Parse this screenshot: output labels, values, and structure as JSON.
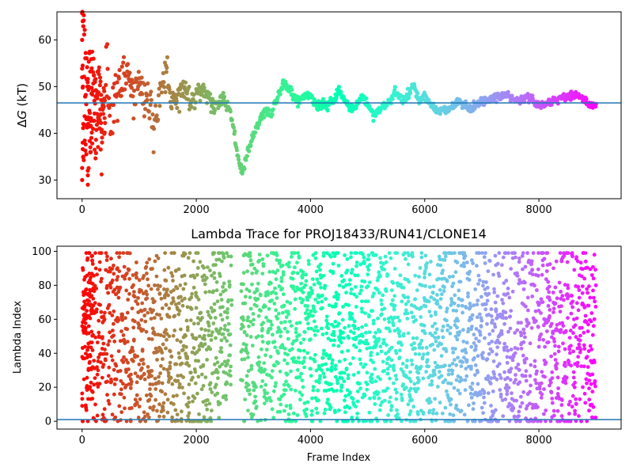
{
  "chart_data": [
    {
      "type": "scatter",
      "title": "",
      "xlabel": "",
      "ylabel": "ΔG (kT)",
      "xlim": [
        -440,
        9440
      ],
      "ylim": [
        26,
        66
      ],
      "xticks": [
        0,
        2000,
        4000,
        6000,
        8000
      ],
      "xtick_labels": [
        "0",
        "2000",
        "4000",
        "6000",
        "8000"
      ],
      "yticks": [
        30,
        40,
        50,
        60
      ],
      "ytick_labels": [
        "30",
        "40",
        "50",
        "60"
      ],
      "hline": 46.5,
      "hline_color": "#1f77b4",
      "colormap": "rainbow (red at frame 0 → violet at frame 9000)",
      "x_max": 9000,
      "series": [
        {
          "trace": [
            [
              0,
              45
            ],
            [
              20,
              50
            ],
            [
              40,
              46
            ],
            [
              60,
              44
            ],
            [
              80,
              49
            ],
            [
              100,
              46
            ],
            [
              150,
              48
            ],
            [
              200,
              50
            ],
            [
              250,
              45
            ],
            [
              300,
              47
            ],
            [
              350,
              43
            ],
            [
              400,
              46
            ],
            [
              450,
              49
            ],
            [
              500,
              46
            ],
            [
              600,
              48
            ],
            [
              700,
              50
            ],
            [
              800,
              53
            ],
            [
              850,
              49
            ],
            [
              900,
              48
            ],
            [
              1000,
              52
            ],
            [
              1100,
              47
            ],
            [
              1200,
              48
            ],
            [
              1250,
              40
            ],
            [
              1300,
              44
            ],
            [
              1350,
              47
            ],
            [
              1400,
              51
            ],
            [
              1500,
              54
            ],
            [
              1550,
              46
            ],
            [
              1600,
              47
            ],
            [
              1700,
              48
            ],
            [
              1800,
              50
            ],
            [
              1900,
              47
            ],
            [
              2000,
              48
            ],
            [
              2100,
              50
            ],
            [
              2200,
              48
            ],
            [
              2300,
              46
            ],
            [
              2400,
              47
            ],
            [
              2500,
              47
            ],
            [
              2600,
              45
            ],
            [
              2700,
              37
            ],
            [
              2780,
              32
            ],
            [
              2800,
              31
            ],
            [
              2900,
              36
            ],
            [
              3000,
              40
            ],
            [
              3100,
              42
            ],
            [
              3200,
              45
            ],
            [
              3300,
              44
            ],
            [
              3400,
              47
            ],
            [
              3500,
              50
            ],
            [
              3550,
              51
            ],
            [
              3600,
              50
            ],
            [
              3700,
              48
            ],
            [
              3800,
              47
            ],
            [
              3900,
              48
            ],
            [
              4000,
              48
            ],
            [
              4100,
              46
            ],
            [
              4200,
              46
            ],
            [
              4300,
              46
            ],
            [
              4400,
              47
            ],
            [
              4500,
              49
            ],
            [
              4600,
              47
            ],
            [
              4700,
              45
            ],
            [
              4800,
              46
            ],
            [
              4900,
              48
            ],
            [
              5000,
              46
            ],
            [
              5100,
              44
            ],
            [
              5200,
              45
            ],
            [
              5300,
              46
            ],
            [
              5400,
              47
            ],
            [
              5500,
              49
            ],
            [
              5600,
              47
            ],
            [
              5700,
              48
            ],
            [
              5800,
              50
            ],
            [
              5900,
              47
            ],
            [
              6000,
              48
            ],
            [
              6100,
              46
            ],
            [
              6200,
              45
            ],
            [
              6300,
              45
            ],
            [
              6400,
              45
            ],
            [
              6500,
              46
            ],
            [
              6600,
              47
            ],
            [
              6700,
              46
            ],
            [
              6800,
              45
            ],
            [
              6900,
              46
            ],
            [
              7000,
              47
            ],
            [
              7100,
              47
            ],
            [
              7200,
              47
            ],
            [
              7300,
              48
            ],
            [
              7400,
              48
            ],
            [
              7500,
              48
            ],
            [
              7600,
              47
            ],
            [
              7700,
              47
            ],
            [
              7800,
              48
            ],
            [
              7900,
              47
            ],
            [
              8000,
              46
            ],
            [
              8100,
              46
            ],
            [
              8200,
              47
            ],
            [
              8300,
              47
            ],
            [
              8400,
              48
            ],
            [
              8500,
              48
            ],
            [
              8600,
              48
            ],
            [
              8700,
              48
            ],
            [
              8800,
              47
            ],
            [
              8900,
              46
            ],
            [
              9000,
              46
            ]
          ],
          "noise_by_frame": [
            [
              0,
              11
            ],
            [
              100,
              8
            ],
            [
              300,
              5
            ],
            [
              800,
              3
            ],
            [
              1500,
              1.5
            ],
            [
              2500,
              0.6
            ],
            [
              4000,
              0.5
            ],
            [
              9000,
              0.4
            ]
          ],
          "sparse_outliers": [
            [
              0,
              60
            ],
            [
              5,
              66
            ],
            [
              10,
              64
            ],
            [
              15,
              50
            ],
            [
              0,
              30
            ],
            [
              10,
              38
            ],
            [
              20,
              35
            ],
            [
              100,
              32
            ],
            [
              100,
              29
            ],
            [
              100,
              31
            ],
            [
              150,
              36
            ],
            [
              0,
              52
            ],
            [
              20,
              42
            ]
          ]
        }
      ]
    },
    {
      "type": "scatter",
      "title": "Lambda Trace for PROJ18433/RUN41/CLONE14",
      "xlabel": "Frame Index",
      "ylabel": "Lambda Index",
      "xlim": [
        -440,
        9440
      ],
      "ylim": [
        -4.6,
        103
      ],
      "xticks": [
        0,
        2000,
        4000,
        6000,
        8000
      ],
      "xtick_labels": [
        "0",
        "2000",
        "4000",
        "6000",
        "8000"
      ],
      "yticks": [
        0,
        20,
        40,
        60,
        80,
        100
      ],
      "ytick_labels": [
        "0",
        "20",
        "40",
        "60",
        "80",
        "100"
      ],
      "hline": 1,
      "hline_color": "#1f77b4",
      "colormap": "rainbow (red at frame 0 → violet at frame 9000)",
      "x_max": 9000,
      "series": [
        {
          "value_range": [
            0,
            99
          ],
          "gap_ranges": [
            [
              2620,
              2780
            ]
          ],
          "note": "dense vertical sweeps spanning lambda index 0-99 at every frame"
        }
      ]
    }
  ]
}
